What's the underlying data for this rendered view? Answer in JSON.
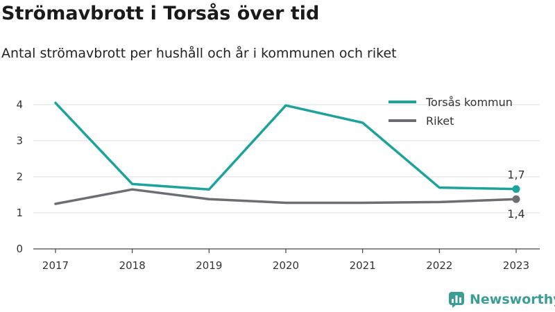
{
  "title": "Strömavbrott i Torsås över tid",
  "subtitle": "Antal strömavbrott per hushåll och år i kommunen och riket",
  "brand": {
    "name": "Newsworthy",
    "icon": "newsworthy-logo-icon",
    "color": "#3a9e94"
  },
  "colors": {
    "torsas": "#1ba39c",
    "riket": "#6d6d74",
    "grid": "#dcdcdc",
    "axis": "#444444"
  },
  "chart_data": {
    "type": "line",
    "x": [
      "2017",
      "2018",
      "2019",
      "2020",
      "2021",
      "2022",
      "2023"
    ],
    "ylim": [
      0,
      4
    ],
    "yticks": [
      "0",
      "1",
      "2",
      "3",
      "4"
    ],
    "grid": true,
    "legend_position": "top-right",
    "series": [
      {
        "name": "Torsås kommun",
        "values": [
          4.05,
          1.8,
          1.65,
          3.98,
          3.5,
          1.7,
          1.66
        ],
        "end_label": "1,7"
      },
      {
        "name": "Riket",
        "values": [
          1.25,
          1.65,
          1.38,
          1.28,
          1.28,
          1.3,
          1.38
        ],
        "end_label": "1,4"
      }
    ]
  }
}
